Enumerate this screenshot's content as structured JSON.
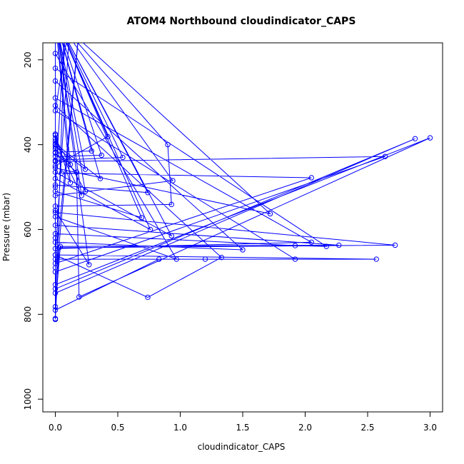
{
  "chart_data": {
    "type": "line",
    "title": "ATOM4 Northbound cloudindicator_CAPS",
    "xlabel": "cloudindicator_CAPS",
    "ylabel": "Pressure (mbar)",
    "xlim": [
      -0.1,
      3.1
    ],
    "ylim": [
      1030,
      160
    ],
    "y_reversed": true,
    "x_ticks": [
      0.0,
      0.5,
      1.0,
      1.5,
      2.0,
      2.5,
      3.0
    ],
    "x_tick_labels": [
      "0.0",
      "0.5",
      "1.0",
      "1.5",
      "2.0",
      "2.5",
      "3.0"
    ],
    "y_ticks": [
      200,
      400,
      600,
      800,
      1000
    ],
    "y_tick_labels": [
      "200",
      "400",
      "600",
      "800",
      "1000"
    ],
    "grid": false,
    "legend": "none",
    "color": "#0000ff",
    "series": [
      {
        "points": [
          [
            0.0,
            812
          ],
          [
            0.0,
            782
          ],
          [
            0.04,
            640
          ],
          [
            2.27,
            637
          ],
          [
            0.0,
            590
          ],
          [
            0.0,
            100
          ],
          [
            0.0,
            810
          ],
          [
            0.03,
            643
          ],
          [
            2.72,
            637
          ],
          [
            0.0,
            560
          ],
          [
            0.0,
            500
          ],
          [
            0.08,
            100
          ],
          [
            0.0,
            790
          ],
          [
            0.83,
            670
          ],
          [
            2.57,
            670
          ],
          [
            0.0,
            660
          ],
          [
            0.0,
            620
          ],
          [
            0.0,
            100
          ],
          [
            0.0,
            750
          ],
          [
            2.88,
            386
          ],
          [
            0.0,
            740
          ],
          [
            0.0,
            690
          ],
          [
            0.2,
            100
          ],
          [
            0.0,
            730
          ],
          [
            3.0,
            384
          ],
          [
            0.19,
            759
          ],
          [
            0.17,
            465
          ],
          [
            0.0,
            420
          ],
          [
            0.0,
            100
          ],
          [
            0.0,
            700
          ],
          [
            2.64,
            428
          ],
          [
            0.0,
            440
          ],
          [
            0.0,
            400
          ],
          [
            0.0,
            100
          ],
          [
            0.0,
            680
          ],
          [
            2.05,
            478
          ],
          [
            0.05,
            467
          ],
          [
            0.0,
            378
          ],
          [
            0.0,
            100
          ],
          [
            0.0,
            670
          ],
          [
            1.2,
            670
          ],
          [
            1.92,
            670
          ],
          [
            0.0,
            320
          ],
          [
            0.12,
            100
          ],
          [
            0.0,
            660
          ],
          [
            0.74,
            760
          ],
          [
            1.33,
            666
          ],
          [
            0.0,
            308
          ],
          [
            0.0,
            100
          ],
          [
            0.0,
            645
          ],
          [
            2.05,
            630
          ],
          [
            0.0,
            290
          ],
          [
            0.0,
            100
          ],
          [
            0.0,
            630
          ],
          [
            1.5,
            648
          ],
          [
            0.0,
            250
          ],
          [
            0.0,
            100
          ],
          [
            0.0,
            610
          ],
          [
            1.92,
            638
          ],
          [
            2.17,
            640
          ],
          [
            0.0,
            220
          ],
          [
            0.0,
            100
          ],
          [
            0.0,
            570
          ],
          [
            0.97,
            670
          ],
          [
            0.0,
            185
          ],
          [
            0.0,
            100
          ],
          [
            0.0,
            555
          ],
          [
            0.27,
            683
          ],
          [
            0.0,
            100
          ],
          [
            0.0,
            545
          ],
          [
            0.93,
            541
          ],
          [
            0.9,
            400
          ],
          [
            0.0,
            100
          ],
          [
            0.0,
            520
          ],
          [
            0.94,
            485
          ],
          [
            0.0,
            100
          ],
          [
            0.0,
            510
          ],
          [
            0.69,
            572
          ],
          [
            0.0,
            100
          ],
          [
            0.0,
            495
          ],
          [
            0.74,
            513
          ],
          [
            0.0,
            100
          ],
          [
            0.0,
            480
          ],
          [
            0.76,
            600
          ],
          [
            0.0,
            100
          ],
          [
            0.0,
            465
          ],
          [
            0.93,
            615
          ],
          [
            0.0,
            100
          ],
          [
            0.0,
            455
          ],
          [
            1.72,
            563
          ],
          [
            0.0,
            100
          ],
          [
            0.0,
            450
          ],
          [
            0.42,
            381
          ],
          [
            0.0,
            100
          ],
          [
            0.0,
            437
          ],
          [
            0.54,
            430
          ],
          [
            0.0,
            100
          ],
          [
            0.0,
            428
          ],
          [
            0.37,
            425
          ],
          [
            0.0,
            100
          ],
          [
            0.0,
            418
          ],
          [
            0.29,
            415
          ],
          [
            0.0,
            100
          ],
          [
            0.0,
            410
          ],
          [
            0.12,
            447
          ],
          [
            0.0,
            100
          ],
          [
            0.0,
            405
          ],
          [
            0.24,
            458
          ],
          [
            0.0,
            100
          ],
          [
            0.0,
            398
          ],
          [
            0.36,
            480
          ],
          [
            0.0,
            100
          ],
          [
            0.0,
            392
          ],
          [
            0.21,
            520
          ],
          [
            0.0,
            100
          ],
          [
            0.0,
            386
          ],
          [
            0.24,
            510
          ],
          [
            0.0,
            100
          ],
          [
            0.0,
            375
          ],
          [
            0.12,
            490
          ],
          [
            0.0,
            100
          ]
        ]
      }
    ]
  }
}
